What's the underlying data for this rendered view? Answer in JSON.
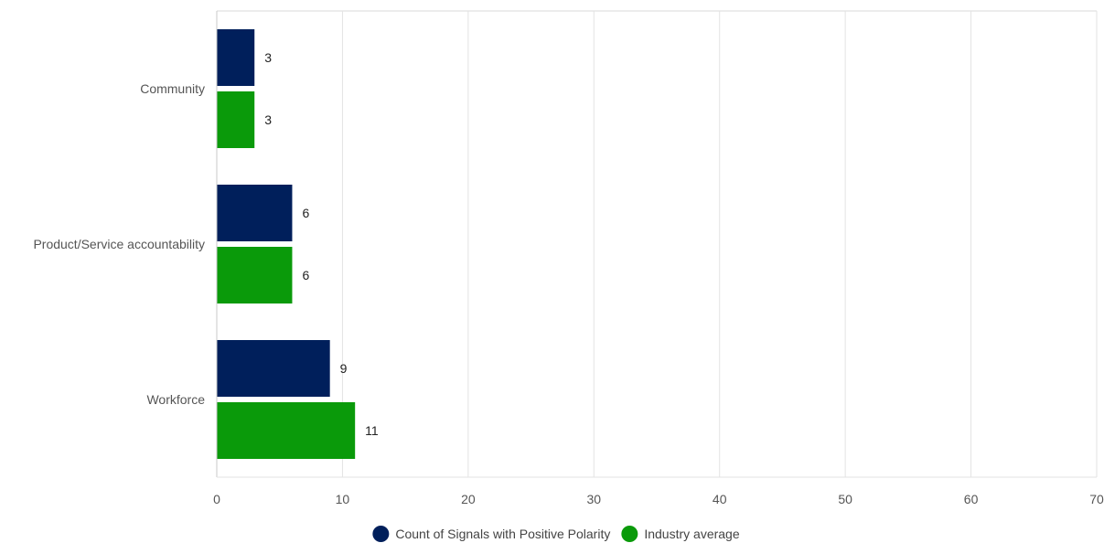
{
  "chart_data": {
    "type": "bar",
    "orientation": "horizontal",
    "categories": [
      "Community",
      "Product/Service accountability",
      "Workforce"
    ],
    "series": [
      {
        "name": "Count of Signals with Positive Polarity",
        "color": "#001f5b",
        "values": [
          3,
          6,
          9
        ]
      },
      {
        "name": "Industry average",
        "color": "#0a9a0a",
        "values": [
          3,
          6,
          11
        ]
      }
    ],
    "xlim": [
      0,
      70
    ],
    "xticks": [
      0,
      10,
      20,
      30,
      40,
      50,
      60,
      70
    ],
    "grid": true,
    "legend_position": "bottom-center",
    "data_labels": true
  }
}
